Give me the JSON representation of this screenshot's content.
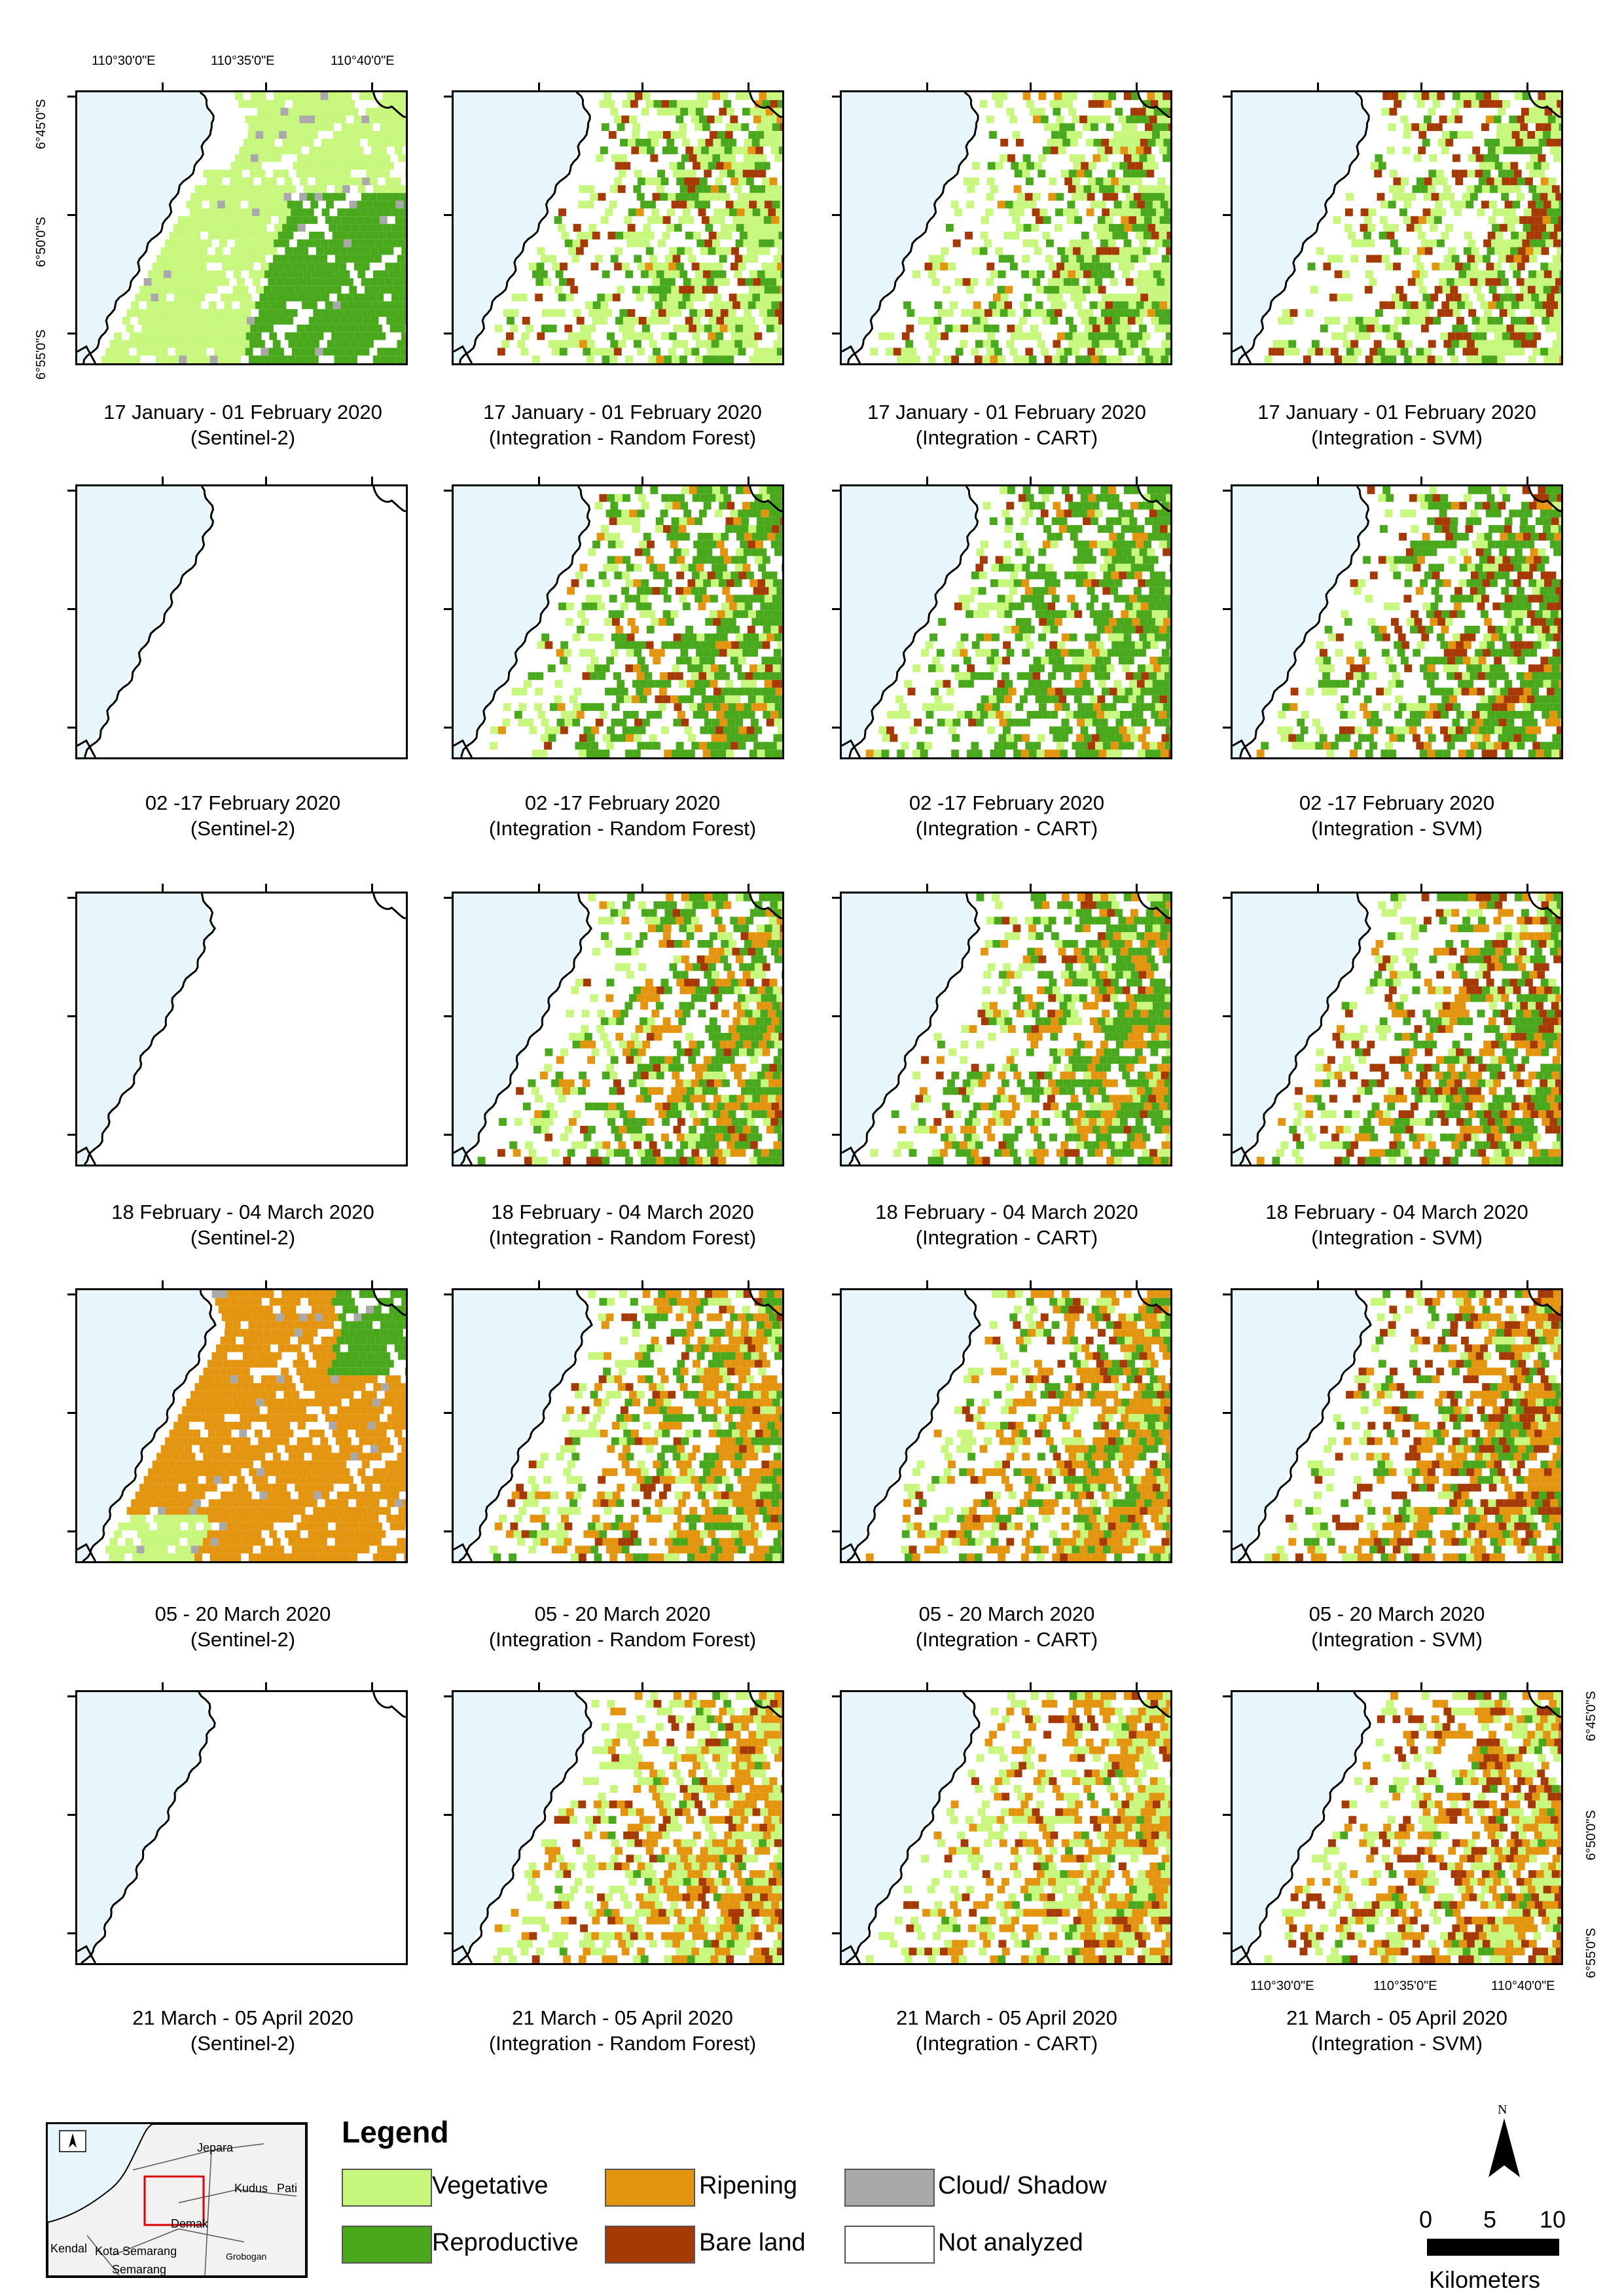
{
  "figure": {
    "rows": [
      {
        "period": "17 January - 01 February 2020",
        "seed": 1,
        "phase": "early"
      },
      {
        "period": "02 -17 February 2020",
        "seed": 2,
        "phase": "repro"
      },
      {
        "period": "18 February - 04 March 2020",
        "seed": 3,
        "phase": "repro-ripe"
      },
      {
        "period": "05 - 20 March 2020",
        "seed": 4,
        "phase": "ripe"
      },
      {
        "period": "21 March - 05 April 2020",
        "seed": 5,
        "phase": "late"
      }
    ],
    "columns": [
      {
        "method": "(Sentinel-2)"
      },
      {
        "method": "(Integration - Random Forest)"
      },
      {
        "method": "(Integration - CART)"
      },
      {
        "method": "(Integration - SVM)"
      }
    ],
    "sentinel_cover": [
      "partial-veg",
      "none",
      "none",
      "partial-ripe",
      "none"
    ],
    "top_longitude_labels": [
      "110°30'0\"E",
      "110°35'0\"E",
      "110°40'0\"E"
    ],
    "bottom_longitude_labels": [
      "110°30'0\"E",
      "110°35'0\"E",
      "110°40'0\"E"
    ],
    "left_latitude_labels": [
      "6°45'0\"S",
      "6°50'0\"S",
      "6°55'0\"S"
    ],
    "right_latitude_labels": [
      "6°45'0\"S",
      "6°50'0\"S",
      "6°55'0\"S"
    ]
  },
  "legend": {
    "title": "Legend",
    "items": [
      {
        "label": "Vegetative",
        "color": "#c7f77c"
      },
      {
        "label": "Reproductive",
        "color": "#4aa81c"
      },
      {
        "label": "Ripening",
        "color": "#e4950f"
      },
      {
        "label": "Bare land",
        "color": "#a63a06"
      },
      {
        "label": "Cloud/ Shadow",
        "color": "#a9a9a9"
      },
      {
        "label": "Not analyzed",
        "color": "#ffffff"
      }
    ]
  },
  "colors": {
    "sea": "#e6f6fb",
    "coast": "#000000"
  },
  "inset": {
    "labels": [
      "Jepara",
      "Kudus",
      "Pati",
      "Demak",
      "Kendal",
      "Kota Semarang",
      "Semarang",
      "Grobogan"
    ]
  },
  "north_arrow": {
    "label": "N"
  },
  "scale_bar": {
    "ticks": [
      "0",
      "5",
      "10"
    ],
    "unit": "Kilometers"
  }
}
